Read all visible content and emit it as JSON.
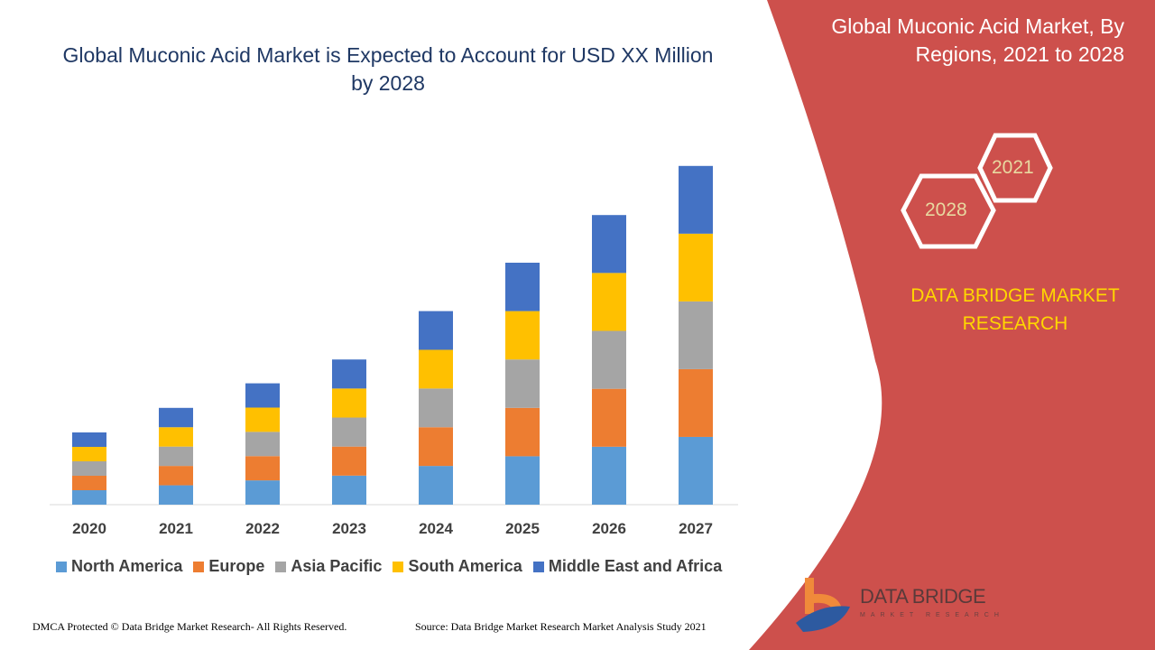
{
  "left_title": "Global Muconic Acid Market is Expected to Account for USD XX Million by 2028",
  "right_panel": {
    "title": "Global Muconic Acid Market, By Regions, 2021 to 2028",
    "hex_years": [
      "2021",
      "2028"
    ],
    "brand_text": "DATA BRIDGE MARKET RESEARCH",
    "logo_text": "DATA BRIDGE",
    "logo_subtext": "MARKET RESEARCH",
    "panel_color": "#cd504c"
  },
  "footer": {
    "left": "DMCA Protected © Data Bridge Market Research- All Rights Reserved.",
    "source": "Source: Data Bridge Market Research Market Analysis Study 2021"
  },
  "chart_data": {
    "type": "bar",
    "stacked": true,
    "categories": [
      "2020",
      "2021",
      "2022",
      "2023",
      "2024",
      "2025",
      "2026",
      "2027"
    ],
    "series": [
      {
        "name": "North America",
        "color": "#5b9bd5",
        "values": [
          1.0,
          1.34,
          1.68,
          2.01,
          2.68,
          3.35,
          4.01,
          4.69
        ]
      },
      {
        "name": "Europe",
        "color": "#ed7d31",
        "values": [
          1.0,
          1.34,
          1.68,
          2.01,
          2.68,
          3.35,
          4.01,
          4.69
        ]
      },
      {
        "name": "Asia Pacific",
        "color": "#a5a5a5",
        "values": [
          1.0,
          1.34,
          1.68,
          2.01,
          2.68,
          3.35,
          4.01,
          4.69
        ]
      },
      {
        "name": "South America",
        "color": "#ffc000",
        "values": [
          1.0,
          1.34,
          1.68,
          2.01,
          2.68,
          3.35,
          4.01,
          4.69
        ]
      },
      {
        "name": "Middle East and Africa",
        "color": "#4472c4",
        "values": [
          1.0,
          1.34,
          1.68,
          2.01,
          2.68,
          3.35,
          4.01,
          4.69
        ]
      }
    ],
    "y_axis_shown": false,
    "grid": false,
    "legend_position": "bottom"
  }
}
